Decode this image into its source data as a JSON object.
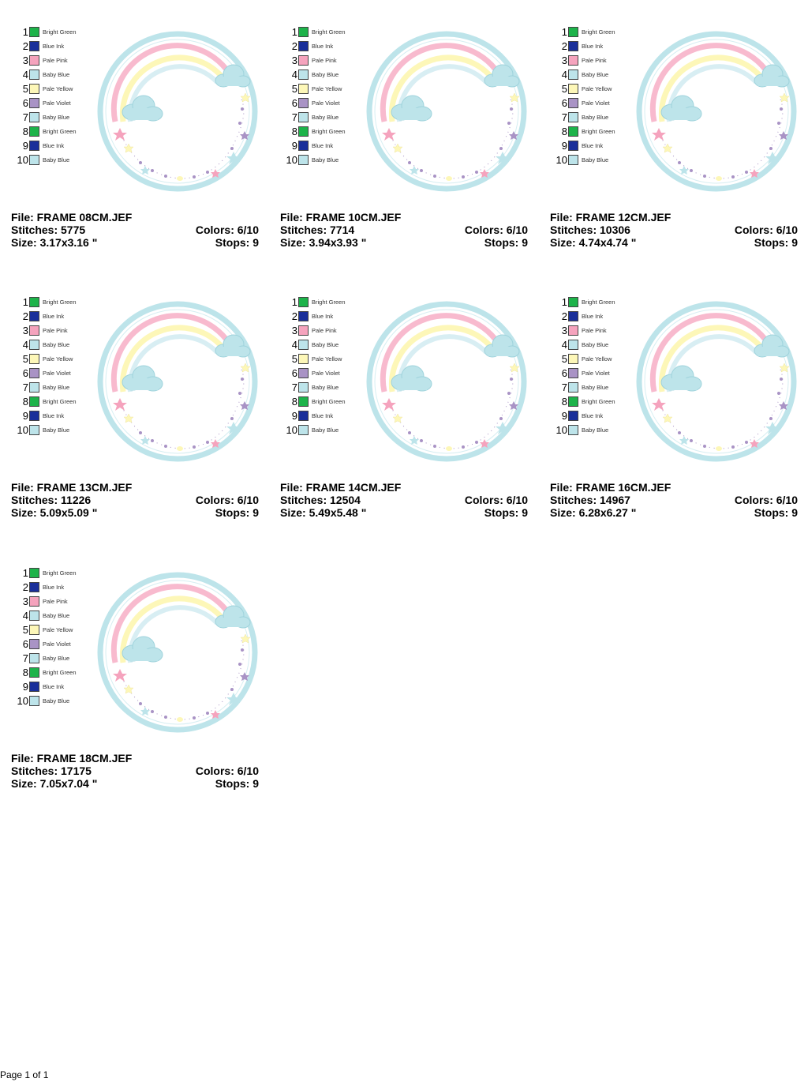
{
  "palette": {
    "Bright Green": "#1db34a",
    "Blue Ink": "#1a2f9a",
    "Pale Pink": "#f5a3bd",
    "Baby Blue": "#bde4ea",
    "Pale Yellow": "#fdf7b8",
    "Pale Violet": "#a993c5"
  },
  "thread_list": [
    {
      "num": "1",
      "name": "Bright Green"
    },
    {
      "num": "2",
      "name": "Blue Ink"
    },
    {
      "num": "3",
      "name": "Pale Pink"
    },
    {
      "num": "4",
      "name": "Baby Blue"
    },
    {
      "num": "5",
      "name": "Pale Yellow"
    },
    {
      "num": "6",
      "name": "Pale Violet"
    },
    {
      "num": "7",
      "name": "Baby Blue"
    },
    {
      "num": "8",
      "name": "Bright Green"
    },
    {
      "num": "9",
      "name": "Blue Ink"
    },
    {
      "num": "10",
      "name": "Baby Blue"
    }
  ],
  "designs": [
    {
      "file": "File: FRAME 08CM.JEF",
      "stitches": "Stitches: 5775",
      "size": "Size: 3.17x3.16 \"",
      "colors": "Colors: 6/10",
      "stops": "Stops: 9"
    },
    {
      "file": "File: FRAME 10CM.JEF",
      "stitches": "Stitches: 7714",
      "size": "Size: 3.94x3.93 \"",
      "colors": "Colors: 6/10",
      "stops": "Stops: 9"
    },
    {
      "file": "File: FRAME 12CM.JEF",
      "stitches": "Stitches: 10306",
      "size": "Size: 4.74x4.74 \"",
      "colors": "Colors: 6/10",
      "stops": "Stops: 9"
    },
    {
      "file": "File: FRAME 13CM.JEF",
      "stitches": "Stitches: 11226",
      "size": "Size: 5.09x5.09 \"",
      "colors": "Colors: 6/10",
      "stops": "Stops: 9"
    },
    {
      "file": "File: FRAME 14CM.JEF",
      "stitches": "Stitches: 12504",
      "size": "Size: 5.49x5.48 \"",
      "colors": "Colors: 6/10",
      "stops": "Stops: 9"
    },
    {
      "file": "File: FRAME 16CM.JEF",
      "stitches": "Stitches: 14967",
      "size": "Size: 6.28x6.27 \"",
      "colors": "Colors: 6/10",
      "stops": "Stops: 9"
    },
    {
      "file": "File: FRAME 18CM.JEF",
      "stitches": "Stitches: 17175",
      "size": "Size: 7.05x7.04 \"",
      "colors": "Colors: 6/10",
      "stops": "Stops: 9"
    }
  ],
  "footer": {
    "page": "Page 1 of 1"
  }
}
